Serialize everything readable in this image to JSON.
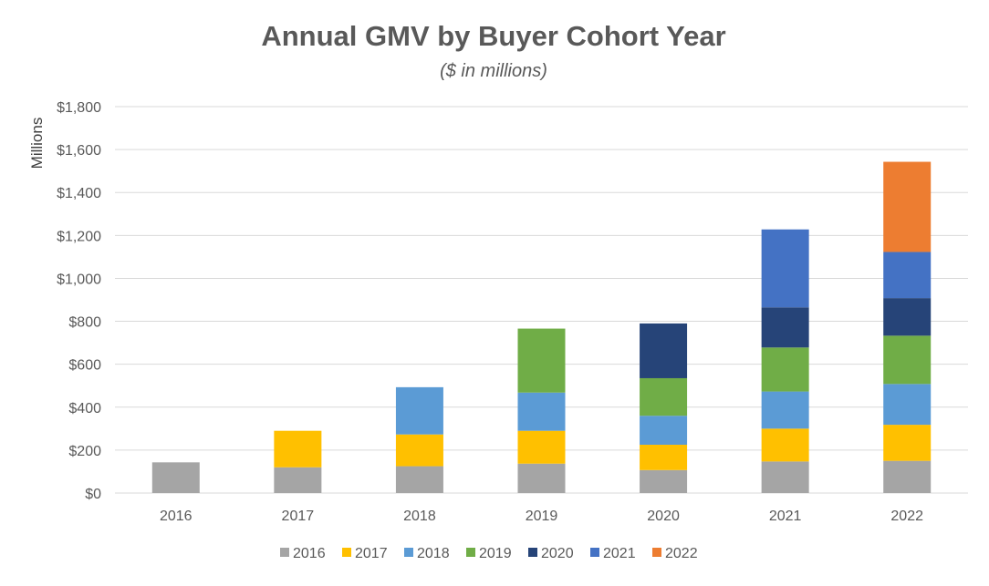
{
  "chart_data": {
    "type": "bar",
    "stacked": true,
    "title": "Annual GMV by Buyer Cohort Year",
    "subtitle": "($ in millions)",
    "xlabel": "",
    "ylabel": "Millions",
    "ylim": [
      0,
      1800
    ],
    "ytick_values": [
      0,
      200,
      400,
      600,
      800,
      1000,
      1200,
      1400,
      1600,
      1800
    ],
    "ytick_labels": [
      "$0",
      "$200",
      "$400",
      "$600",
      "$800",
      "$1,000",
      "$1,200",
      "$1,400",
      "$1,600",
      "$1,800"
    ],
    "grid": true,
    "legend_position": "bottom",
    "categories": [
      "2016",
      "2017",
      "2018",
      "2019",
      "2020",
      "2021",
      "2022"
    ],
    "series": [
      {
        "name": "2016",
        "color": "#A5A5A5",
        "values": [
          143,
          120,
          125,
          137,
          107,
          147,
          150
        ]
      },
      {
        "name": "2017",
        "color": "#FFC000",
        "values": [
          0,
          170,
          148,
          153,
          118,
          153,
          168
        ]
      },
      {
        "name": "2018",
        "color": "#5B9BD5",
        "values": [
          0,
          0,
          220,
          178,
          135,
          173,
          190
        ]
      },
      {
        "name": "2019",
        "color": "#70AD47",
        "values": [
          0,
          0,
          0,
          298,
          175,
          205,
          225
        ]
      },
      {
        "name": "2020",
        "color": "#264478",
        "values": [
          0,
          0,
          0,
          0,
          255,
          187,
          175
        ]
      },
      {
        "name": "2021",
        "color": "#4472C4",
        "values": [
          0,
          0,
          0,
          0,
          0,
          363,
          215
        ]
      },
      {
        "name": "2022",
        "color": "#ED7D31",
        "values": [
          0,
          0,
          0,
          0,
          0,
          0,
          420
        ]
      }
    ]
  }
}
